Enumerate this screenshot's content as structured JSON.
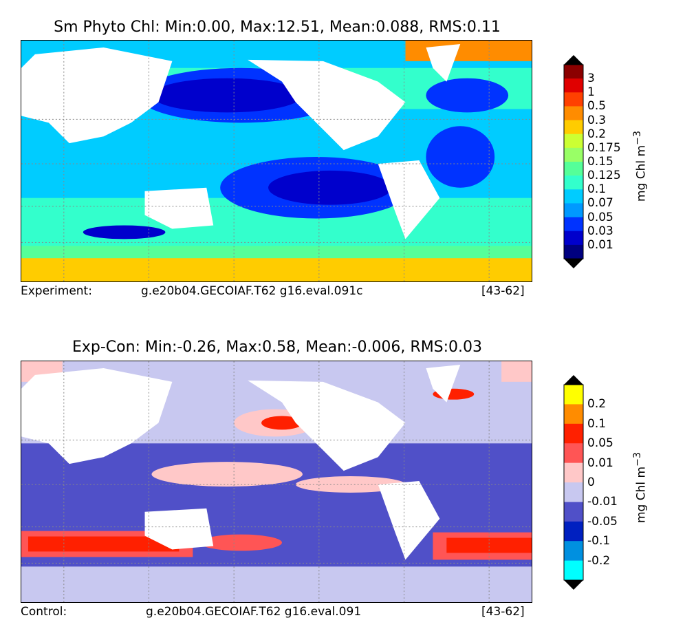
{
  "panels": [
    {
      "title": "Sm Phyto Chl: Min:0.00, Max:12.51, Mean:0.088, RMS:0.11",
      "caption_left": "Experiment:",
      "caption_center": "g.e20b04.GECOIAF.T62 g16.eval.091c",
      "caption_right": "[43-62]",
      "units": "mg Chl m",
      "units_sup": "−3",
      "colorbar": {
        "labels": [
          "3",
          "1",
          "0.5",
          "0.3",
          "0.2",
          "0.175",
          "0.15",
          "0.125",
          "0.1",
          "0.07",
          "0.05",
          "0.03",
          "0.01"
        ],
        "colors": [
          "#8b0000",
          "#e00000",
          "#ff4000",
          "#ff8c00",
          "#ffcc00",
          "#ccff33",
          "#99ff66",
          "#55ff99",
          "#33ffcc",
          "#00ccff",
          "#0099ff",
          "#0033ff",
          "#0000cc",
          "#000080"
        ],
        "over_color": "#000000",
        "under_color": "#000000"
      }
    },
    {
      "title": "Exp-Con: Min:-0.26, Max:0.58, Mean:-0.006, RMS:0.03",
      "caption_left": "Control:",
      "caption_center": "g.e20b04.GECOIAF.T62 g16.eval.091",
      "caption_right": "[43-62]",
      "units": "mg Chl m",
      "units_sup": "−3",
      "colorbar": {
        "labels": [
          "0.2",
          "0.1",
          "0.05",
          "0.01",
          "0",
          "-0.01",
          "-0.05",
          "-0.1",
          "-0.2"
        ],
        "colors": [
          "#ffff00",
          "#ff8c00",
          "#ff2000",
          "#ff5555",
          "#ffc8c8",
          "#c8c8f0",
          "#5050c8",
          "#0020c0",
          "#0090e0",
          "#00ffff"
        ],
        "over_color": "#000000",
        "under_color": "#000000"
      }
    }
  ]
}
